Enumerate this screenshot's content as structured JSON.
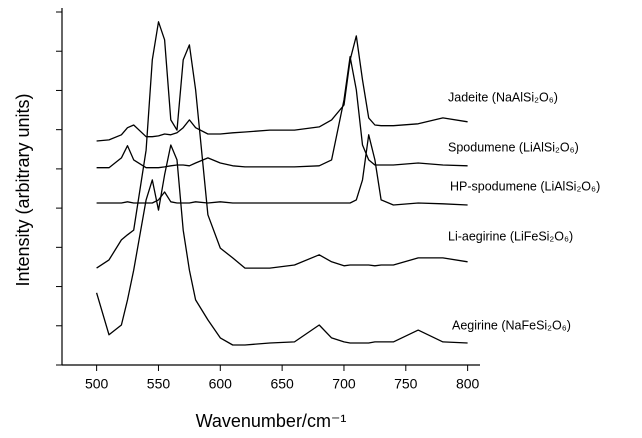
{
  "chart_data": {
    "type": "line",
    "x_label": "Wavenumber/cm⁻¹",
    "y_label": "Intensity (arbitrary units)",
    "x": [
      500,
      510,
      520,
      525,
      530,
      540,
      545,
      550,
      555,
      560,
      565,
      570,
      575,
      580,
      590,
      600,
      610,
      620,
      640,
      660,
      680,
      690,
      700,
      705,
      710,
      715,
      720,
      725,
      730,
      740,
      760,
      780,
      800
    ],
    "series": [
      {
        "name": "Jadeite (NaAlSi₂O₆)",
        "color": "#000000",
        "values": [
          5.71,
          5.74,
          5.87,
          6.05,
          6.12,
          5.82,
          5.82,
          5.84,
          5.89,
          5.87,
          5.92,
          6.05,
          6.25,
          6.05,
          5.89,
          5.89,
          5.92,
          5.94,
          5.99,
          5.99,
          6.07,
          6.25,
          6.63,
          7.78,
          8.39,
          7.27,
          6.3,
          6.12,
          6.1,
          6.1,
          6.15,
          6.3,
          6.2
        ]
      },
      {
        "name": "Spodumene (LiAlSi₂O₆)",
        "color": "#000000",
        "values": [
          5.03,
          5.03,
          5.28,
          5.59,
          5.23,
          5.03,
          5.03,
          5.03,
          5.05,
          5.08,
          5.1,
          5.1,
          5.08,
          5.15,
          5.28,
          5.15,
          5.08,
          5.05,
          5.05,
          5.05,
          5.08,
          5.23,
          6.76,
          7.86,
          7.02,
          5.61,
          5.23,
          5.1,
          5.1,
          5.1,
          5.15,
          5.1,
          5.08
        ]
      },
      {
        "name": "HP-spodumene (LiAlSi₂O₆)",
        "color": "#000000",
        "values": [
          4.13,
          4.13,
          4.13,
          4.16,
          4.13,
          4.13,
          4.13,
          4.21,
          4.41,
          4.16,
          4.13,
          4.13,
          4.13,
          4.16,
          4.13,
          4.16,
          4.13,
          4.13,
          4.13,
          4.13,
          4.13,
          4.13,
          4.13,
          4.13,
          4.21,
          4.72,
          5.87,
          5.23,
          4.21,
          4.08,
          4.13,
          4.11,
          4.08
        ]
      },
      {
        "name": "Li-aegirine (LiFeSi₂O₆)",
        "color": "#000000",
        "values": [
          2.47,
          2.68,
          3.19,
          3.32,
          3.44,
          5.48,
          7.78,
          8.75,
          8.29,
          6.25,
          5.99,
          7.78,
          8.16,
          7.02,
          3.83,
          2.98,
          2.73,
          2.47,
          2.47,
          2.55,
          2.81,
          2.63,
          2.53,
          2.55,
          2.55,
          2.55,
          2.55,
          2.53,
          2.55,
          2.55,
          2.73,
          2.73,
          2.63
        ]
      },
      {
        "name": "Aegirine (NaFeSi₂O₆)",
        "color": "#000000",
        "values": [
          1.84,
          0.77,
          1.02,
          1.66,
          2.42,
          4.21,
          4.72,
          3.95,
          4.85,
          5.61,
          5.23,
          3.44,
          2.42,
          1.66,
          1.15,
          0.69,
          0.51,
          0.51,
          0.56,
          0.59,
          1.02,
          0.69,
          0.59,
          0.56,
          0.56,
          0.56,
          0.56,
          0.59,
          0.59,
          0.59,
          0.89,
          0.59,
          0.56
        ]
      }
    ],
    "xlim": [
      472,
      810
    ],
    "xticks": [
      500,
      550,
      600,
      650,
      700,
      750,
      800
    ],
    "ylim": [
      0,
      9
    ],
    "yticks": [
      0,
      1,
      2,
      3,
      4,
      5,
      6,
      7,
      8,
      9
    ]
  }
}
